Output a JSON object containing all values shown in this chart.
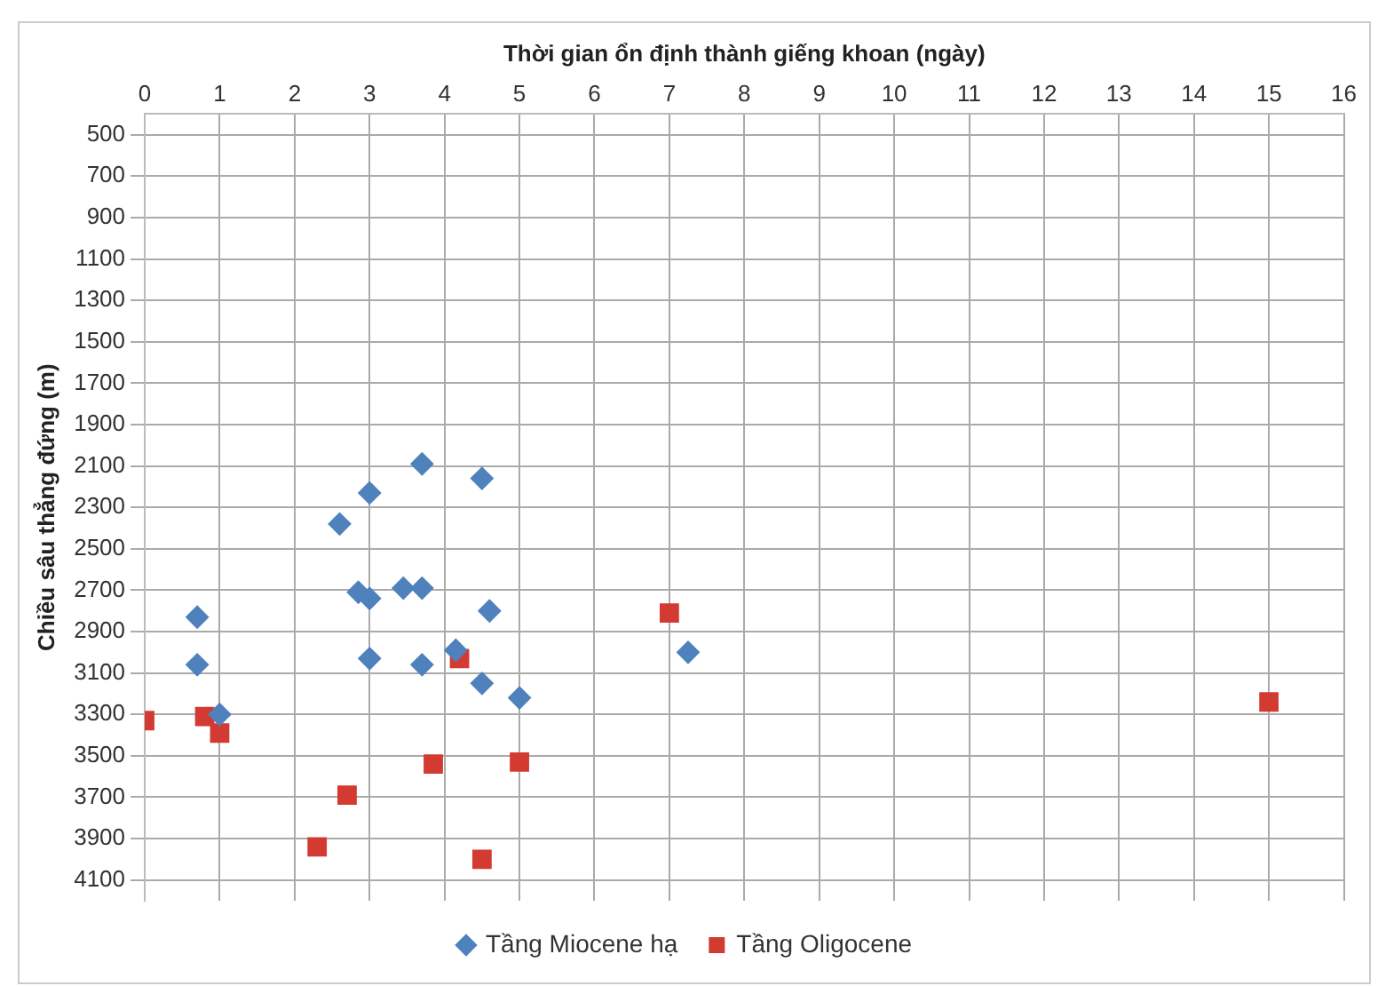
{
  "chart_data": {
    "type": "scatter",
    "xlabel": "Thời gian ổn định thành giếng khoan (ngày)",
    "ylabel": "Chiều sâu thẳng đứng (m)",
    "xlim": [
      0,
      16
    ],
    "xticks": [
      0,
      1,
      2,
      3,
      4,
      5,
      6,
      7,
      8,
      9,
      10,
      11,
      12,
      13,
      14,
      15,
      16
    ],
    "ylim": [
      4200,
      400
    ],
    "yticks": [
      500,
      700,
      900,
      1100,
      1300,
      1500,
      1700,
      1900,
      2100,
      2300,
      2500,
      2700,
      2900,
      3100,
      3300,
      3500,
      3700,
      3900,
      4100
    ],
    "grid": true,
    "legend": "bottom",
    "series": [
      {
        "name": "Tầng Miocene hạ",
        "color": "#4f81bd",
        "marker": "diamond",
        "x": [
          3.7,
          4.5,
          3.0,
          2.6,
          2.85,
          3.0,
          3.45,
          3.7,
          4.6,
          0.7,
          0.7,
          3.0,
          3.7,
          4.15,
          4.5,
          5.0,
          1.0,
          7.25
        ],
        "values": [
          2090,
          2160,
          2230,
          2380,
          2710,
          2740,
          2690,
          2690,
          2800,
          2830,
          3060,
          3030,
          3060,
          2990,
          3150,
          3220,
          3300,
          3000
        ]
      },
      {
        "name": "Tầng Oligocene",
        "color": "#d33b32",
        "marker": "square",
        "x": [
          0,
          0.8,
          1.0,
          4.2,
          3.85,
          5.0,
          2.7,
          2.3,
          4.5,
          7.0,
          15.0
        ],
        "values": [
          3330,
          3310,
          3390,
          3030,
          3540,
          3530,
          3690,
          3940,
          4000,
          2810,
          3240
        ]
      }
    ]
  }
}
